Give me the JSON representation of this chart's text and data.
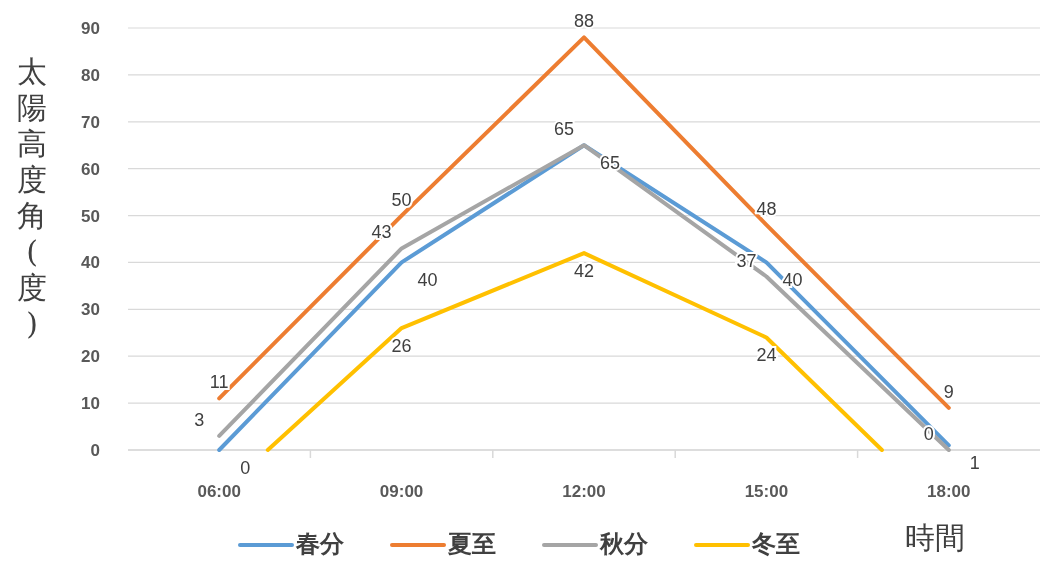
{
  "chart_data": {
    "type": "line",
    "xlabel": "時間",
    "ylabel": "太陽高度角(度)",
    "x": [
      6,
      9,
      12,
      15,
      18
    ],
    "xlim": [
      4.5,
      19.5
    ],
    "xticks": [
      {
        "value": 6,
        "label": "06:00"
      },
      {
        "value": 9,
        "label": "09:00"
      },
      {
        "value": 12,
        "label": "12:00"
      },
      {
        "value": 15,
        "label": "15:00"
      },
      {
        "value": 18,
        "label": "18:00"
      }
    ],
    "ylim": [
      0,
      90
    ],
    "yticks": [
      0,
      10,
      20,
      30,
      40,
      50,
      60,
      70,
      80,
      90
    ],
    "grid": "y",
    "legend": "bottom",
    "marker": "none",
    "line_style": "solid",
    "series": [
      {
        "name": "春分",
        "color": "#5b9bd5",
        "values": [
          0,
          40,
          65,
          40,
          1
        ],
        "value_labels": [
          "0",
          "40",
          "65",
          "40",
          "1"
        ]
      },
      {
        "name": "夏至",
        "color": "#ed7d31",
        "values": [
          11,
          50,
          88,
          48,
          9
        ],
        "value_labels": [
          "11",
          "50",
          "88",
          "48",
          "9"
        ]
      },
      {
        "name": "秋分",
        "color": "#a5a5a5",
        "values": [
          3,
          43,
          65,
          37,
          0
        ],
        "value_labels": [
          "3",
          "43",
          "65",
          "37",
          "0"
        ]
      },
      {
        "name": "冬至",
        "color": "#ffc000",
        "x": [
          6.8,
          9,
          12,
          15,
          16.9
        ],
        "values": [
          0,
          26,
          42,
          24,
          0
        ],
        "value_labels": [
          null,
          "26",
          "42",
          "24",
          null
        ]
      }
    ]
  }
}
